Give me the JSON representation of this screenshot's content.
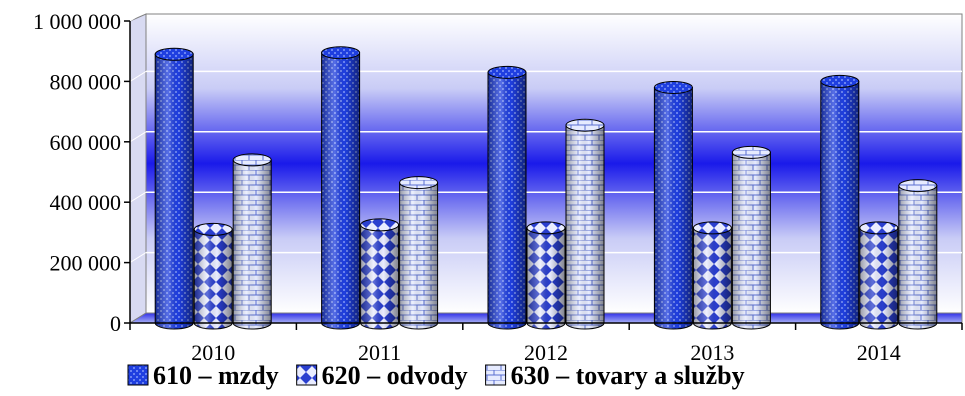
{
  "chart_data": {
    "type": "bar",
    "title": "",
    "xlabel": "",
    "ylabel": "",
    "categories": [
      "2010",
      "2011",
      "2012",
      "2013",
      "2014"
    ],
    "ylim": [
      0,
      1000000
    ],
    "yticks": [
      {
        "value": 0,
        "label": "0"
      },
      {
        "value": 200000,
        "label": "200 000"
      },
      {
        "value": 400000,
        "label": "400 000"
      },
      {
        "value": 600000,
        "label": "600 000"
      },
      {
        "value": 800000,
        "label": "800 000"
      },
      {
        "value": 1000000,
        "label": "1 000 000"
      }
    ],
    "grid": true,
    "legend": "bottom",
    "series": [
      {
        "name": "610 – mzdy",
        "color": "#1f3fe0",
        "pattern": "dots",
        "values": [
          890000,
          895000,
          830000,
          780000,
          800000
        ]
      },
      {
        "name": "620 – odvody",
        "color": "#8aa0e8",
        "pattern": "diamonds",
        "values": [
          310000,
          325000,
          315000,
          315000,
          315000
        ]
      },
      {
        "name": "630 – tovary a služby",
        "color": "#c8d2ff",
        "pattern": "bricks",
        "values": [
          540000,
          465000,
          655000,
          565000,
          455000
        ]
      }
    ]
  }
}
